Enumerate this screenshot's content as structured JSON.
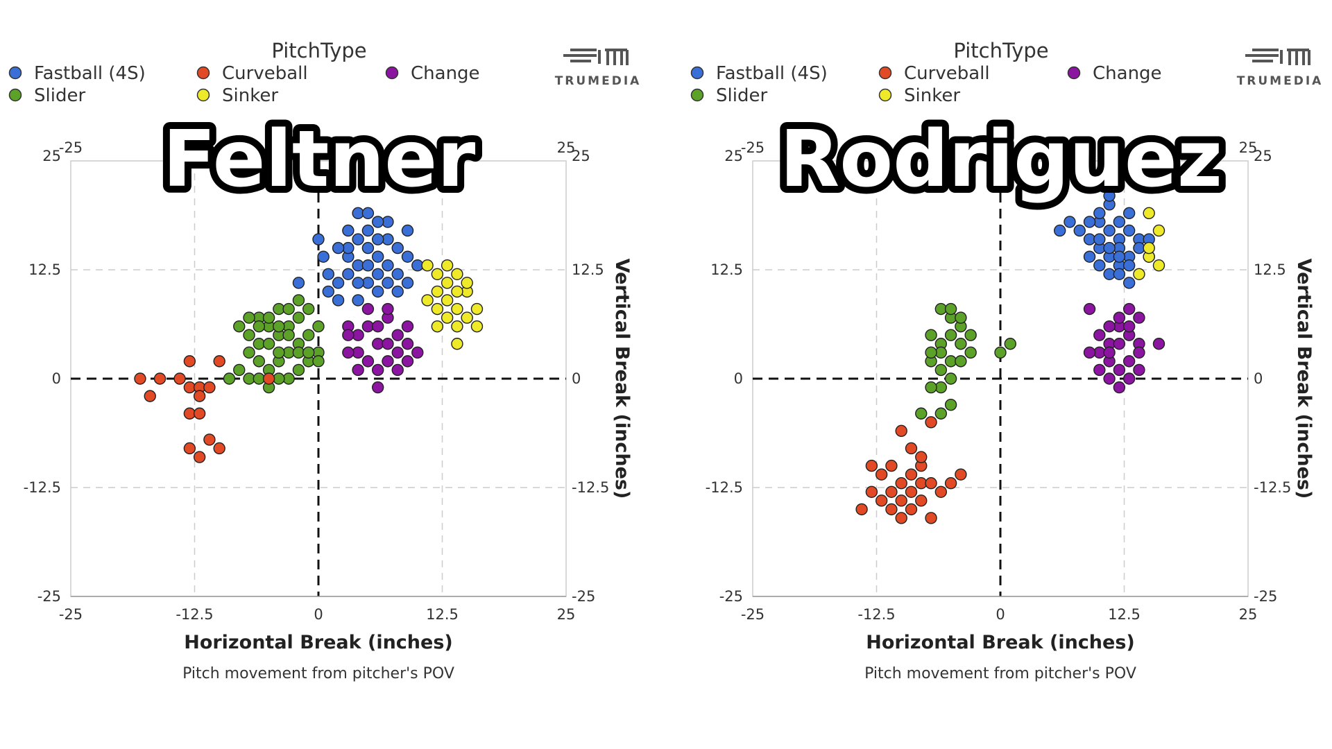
{
  "chart_data": [
    {
      "type": "scatter",
      "overlay_name": "Feltner",
      "legend_title": "PitchType",
      "brand_label": "TRUMEDIA",
      "xlabel": "Horizontal Break (inches)",
      "ylabel": "Vertical Break (inches)",
      "caption": "Pitch movement from pitcher's POV",
      "xlim": [
        -25,
        25
      ],
      "ylim": [
        -25,
        25
      ],
      "x_ticks": [
        "-25",
        "-12.5",
        "0",
        "12.5",
        "25"
      ],
      "y_ticks": [
        "25",
        "12.5",
        "0",
        "-12.5",
        "-25"
      ],
      "x2_ticks": [
        "-25",
        "25"
      ],
      "grid": true,
      "legend_position": "top-left",
      "series": [
        {
          "name": "Fastball (4S)",
          "color": "#3a6fd8",
          "points": [
            [
              0,
              16
            ],
            [
              0.5,
              14
            ],
            [
              1,
              12
            ],
            [
              1,
              10
            ],
            [
              2,
              9
            ],
            [
              2,
              11
            ],
            [
              3,
              12
            ],
            [
              3,
              14
            ],
            [
              3,
              15
            ],
            [
              4,
              13
            ],
            [
              4,
              16
            ],
            [
              5,
              17
            ],
            [
              5,
              15
            ],
            [
              6,
              14
            ],
            [
              6,
              12
            ],
            [
              7,
              16
            ],
            [
              7,
              13
            ],
            [
              8,
              15
            ],
            [
              8,
              12
            ],
            [
              9,
              11
            ],
            [
              9,
              17
            ],
            [
              5,
              11
            ],
            [
              4,
              9
            ],
            [
              6,
              10
            ],
            [
              3,
              17
            ],
            [
              7,
              18
            ],
            [
              4,
              19
            ],
            [
              -2,
              11
            ],
            [
              10,
              13
            ],
            [
              8,
              10
            ],
            [
              5,
              13
            ],
            [
              6,
              16
            ],
            [
              2,
              15
            ],
            [
              4,
              11
            ],
            [
              7,
              11
            ],
            [
              9,
              14
            ],
            [
              6,
              18
            ],
            [
              5,
              19
            ]
          ]
        },
        {
          "name": "Slider",
          "color": "#5ca128",
          "points": [
            [
              -8,
              6
            ],
            [
              -7,
              5
            ],
            [
              -7,
              3
            ],
            [
              -6,
              7
            ],
            [
              -6,
              4
            ],
            [
              -6,
              2
            ],
            [
              -5,
              6
            ],
            [
              -5,
              4
            ],
            [
              -5,
              1
            ],
            [
              -4,
              8
            ],
            [
              -4,
              5
            ],
            [
              -4,
              2
            ],
            [
              -3,
              6
            ],
            [
              -3,
              3
            ],
            [
              -3,
              0
            ],
            [
              -2,
              7
            ],
            [
              -2,
              4
            ],
            [
              -2,
              1
            ],
            [
              -1,
              5
            ],
            [
              -1,
              2
            ],
            [
              -1,
              8
            ],
            [
              0,
              3
            ],
            [
              0,
              6
            ],
            [
              -7,
              0
            ],
            [
              -6,
              0
            ],
            [
              -8,
              1
            ],
            [
              -9,
              0
            ],
            [
              -4,
              0
            ],
            [
              -5,
              -1
            ],
            [
              -3,
              8
            ],
            [
              -2,
              9
            ],
            [
              -5,
              7
            ],
            [
              -7,
              7
            ],
            [
              -6,
              6
            ],
            [
              -4,
              3
            ],
            [
              -3,
              5
            ],
            [
              -2,
              3
            ],
            [
              -1,
              3
            ],
            [
              0,
              2
            ],
            [
              -4,
              6
            ]
          ]
        },
        {
          "name": "Curveball",
          "color": "#e24a25",
          "points": [
            [
              -18,
              0
            ],
            [
              -16,
              0
            ],
            [
              -17,
              -2
            ],
            [
              -14,
              0
            ],
            [
              -13,
              -1
            ],
            [
              -12,
              -1
            ],
            [
              -12,
              -2
            ],
            [
              -11,
              -1
            ],
            [
              -13,
              -4
            ],
            [
              -12,
              -4
            ],
            [
              -13,
              -8
            ],
            [
              -12,
              -9
            ],
            [
              -11,
              -7
            ],
            [
              -10,
              -8
            ],
            [
              -13,
              2
            ],
            [
              -10,
              2
            ],
            [
              -5,
              0
            ]
          ]
        },
        {
          "name": "Sinker",
          "color": "#eeea2a",
          "points": [
            [
              11,
              13
            ],
            [
              12,
              12
            ],
            [
              13,
              11
            ],
            [
              14,
              12
            ],
            [
              15,
              10
            ],
            [
              13,
              9
            ],
            [
              12,
              8
            ],
            [
              14,
              8
            ],
            [
              15,
              7
            ],
            [
              16,
              8
            ],
            [
              13,
              7
            ],
            [
              14,
              6
            ],
            [
              12,
              6
            ],
            [
              11,
              9
            ],
            [
              13,
              13
            ],
            [
              14,
              4
            ],
            [
              16,
              6
            ],
            [
              15,
              11
            ],
            [
              12,
              10
            ],
            [
              14,
              10
            ]
          ]
        },
        {
          "name": "Change",
          "color": "#8b15a0",
          "points": [
            [
              3,
              6
            ],
            [
              4,
              5
            ],
            [
              5,
              6
            ],
            [
              6,
              4
            ],
            [
              7,
              7
            ],
            [
              8,
              5
            ],
            [
              9,
              4
            ],
            [
              4,
              3
            ],
            [
              5,
              2
            ],
            [
              6,
              1
            ],
            [
              7,
              2
            ],
            [
              8,
              3
            ],
            [
              9,
              6
            ],
            [
              3,
              3
            ],
            [
              4,
              1
            ],
            [
              6,
              6
            ],
            [
              7,
              4
            ],
            [
              8,
              1
            ],
            [
              5,
              8
            ],
            [
              9,
              2
            ],
            [
              10,
              3
            ],
            [
              6,
              -1
            ],
            [
              7,
              8
            ],
            [
              3,
              5
            ]
          ]
        }
      ]
    },
    {
      "type": "scatter",
      "overlay_name": "Rodriguez",
      "legend_title": "PitchType",
      "brand_label": "TRUMEDIA",
      "xlabel": "Horizontal Break (inches)",
      "ylabel": "Vertical Break (inches)",
      "caption": "Pitch movement from pitcher's POV",
      "xlim": [
        -25,
        25
      ],
      "ylim": [
        -25,
        25
      ],
      "x_ticks": [
        "-25",
        "-12.5",
        "0",
        "12.5",
        "25"
      ],
      "y_ticks": [
        "25",
        "12.5",
        "0",
        "-12.5",
        "-25"
      ],
      "x2_ticks": [
        "-25",
        "25"
      ],
      "grid": true,
      "legend_position": "top-left",
      "series": [
        {
          "name": "Fastball (4S)",
          "color": "#3a6fd8",
          "points": [
            [
              8,
              17
            ],
            [
              9,
              16
            ],
            [
              10,
              18
            ],
            [
              11,
              17
            ],
            [
              12,
              16
            ],
            [
              13,
              17
            ],
            [
              14,
              16
            ],
            [
              9,
              14
            ],
            [
              10,
              15
            ],
            [
              11,
              14
            ],
            [
              12,
              15
            ],
            [
              13,
              14
            ],
            [
              10,
              19
            ],
            [
              11,
              20
            ],
            [
              12,
              18
            ],
            [
              13,
              19
            ],
            [
              14,
              15
            ],
            [
              15,
              16
            ],
            [
              11,
              12
            ],
            [
              12,
              13
            ],
            [
              13,
              13
            ],
            [
              10,
              13
            ],
            [
              9,
              18
            ],
            [
              11,
              15
            ],
            [
              12,
              12
            ],
            [
              13,
              11
            ],
            [
              6,
              17
            ],
            [
              7,
              18
            ],
            [
              15,
              14
            ],
            [
              11,
              21
            ],
            [
              12,
              14
            ],
            [
              10,
              16
            ]
          ]
        },
        {
          "name": "Sinker",
          "color": "#eeea2a",
          "points": [
            [
              15,
              19
            ],
            [
              16,
              17
            ],
            [
              16,
              13
            ],
            [
              15,
              14
            ],
            [
              14,
              12
            ],
            [
              15,
              15
            ]
          ]
        },
        {
          "name": "Change",
          "color": "#8b15a0",
          "points": [
            [
              9,
              8
            ],
            [
              10,
              5
            ],
            [
              11,
              4
            ],
            [
              12,
              6
            ],
            [
              13,
              5
            ],
            [
              14,
              4
            ],
            [
              10,
              3
            ],
            [
              11,
              2
            ],
            [
              12,
              1
            ],
            [
              13,
              2
            ],
            [
              14,
              3
            ],
            [
              11,
              6
            ],
            [
              12,
              7
            ],
            [
              13,
              8
            ],
            [
              14,
              7
            ],
            [
              9,
              3
            ],
            [
              16,
              4
            ],
            [
              11,
              0
            ],
            [
              12,
              -1
            ],
            [
              13,
              0
            ],
            [
              10,
              1
            ],
            [
              12,
              4
            ],
            [
              13,
              6
            ],
            [
              11,
              3
            ],
            [
              14,
              1
            ]
          ]
        },
        {
          "name": "Slider",
          "color": "#5ca128",
          "points": [
            [
              -6,
              8
            ],
            [
              -5,
              7
            ],
            [
              -4,
              6
            ],
            [
              -5,
              5
            ],
            [
              -6,
              4
            ],
            [
              -7,
              5
            ],
            [
              -6,
              3
            ],
            [
              -5,
              2
            ],
            [
              -4,
              4
            ],
            [
              -3,
              5
            ],
            [
              -5,
              0
            ],
            [
              -6,
              1
            ],
            [
              -7,
              2
            ],
            [
              -6,
              -1
            ],
            [
              -5,
              -3
            ],
            [
              -7,
              -1
            ],
            [
              -8,
              -4
            ],
            [
              -6,
              -4
            ],
            [
              -4,
              7
            ],
            [
              -5,
              8
            ],
            [
              -7,
              3
            ],
            [
              -3,
              3
            ],
            [
              0,
              3
            ],
            [
              1,
              4
            ],
            [
              -4,
              2
            ]
          ]
        },
        {
          "name": "Curveball",
          "color": "#e24a25",
          "points": [
            [
              -10,
              -6
            ],
            [
              -9,
              -8
            ],
            [
              -8,
              -10
            ],
            [
              -9,
              -11
            ],
            [
              -10,
              -12
            ],
            [
              -11,
              -10
            ],
            [
              -12,
              -11
            ],
            [
              -11,
              -13
            ],
            [
              -10,
              -14
            ],
            [
              -9,
              -13
            ],
            [
              -8,
              -12
            ],
            [
              -7,
              -12
            ],
            [
              -8,
              -14
            ],
            [
              -9,
              -15
            ],
            [
              -10,
              -16
            ],
            [
              -12,
              -14
            ],
            [
              -13,
              -13
            ],
            [
              -13,
              -10
            ],
            [
              -14,
              -15
            ],
            [
              -11,
              -15
            ],
            [
              -7,
              -16
            ],
            [
              -6,
              -13
            ],
            [
              -5,
              -12
            ],
            [
              -4,
              -11
            ],
            [
              -7,
              -5
            ],
            [
              -8,
              -9
            ]
          ]
        }
      ]
    }
  ]
}
